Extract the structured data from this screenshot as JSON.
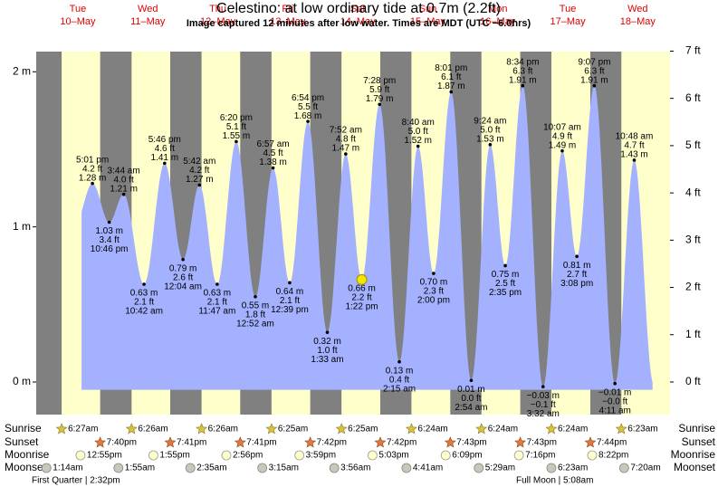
{
  "chart_data": {
    "type": "tide",
    "title": "Celestino: at low  ordinary tide at 0.7m (2.2ft)",
    "subtitle": "Image captured 12 minutes after low water. Times are MDT (UTC −6.0hrs)",
    "ylim": [
      -0.21,
      2.13
    ],
    "yticks": [
      {
        "value": 0,
        "label": "0 m"
      },
      {
        "value": 1,
        "label": "1 m"
      },
      {
        "value": 2,
        "label": "2 m"
      }
    ],
    "y2lim": [
      -0.69,
      6.99
    ],
    "y2ticks": [
      {
        "value": 0,
        "label": "0 ft"
      },
      {
        "value": 1,
        "label": "1 ft"
      },
      {
        "value": 2,
        "label": "2 ft"
      },
      {
        "value": 3,
        "label": "3 ft"
      },
      {
        "value": 4,
        "label": "4 ft"
      },
      {
        "value": 5,
        "label": "5 ft"
      },
      {
        "value": 6,
        "label": "6 ft"
      },
      {
        "value": 7,
        "label": "7 ft"
      }
    ],
    "water_color": "#a3b1ff",
    "day_color": "#ffffcc",
    "night_color": "#808080",
    "header_color": "#e00000",
    "days": [
      {
        "weekday": "Tue",
        "date": "10–May",
        "times": [
          "5:01 pm",
          "10:46 pm"
        ],
        "values": [
          1.28,
          1.03
        ],
        "value_labels": [
          "1.28 m",
          "1.03 m"
        ],
        "feet": [
          "4.2 ft",
          "3.4 ft"
        ]
      },
      {
        "weekday": "Wed",
        "date": "11–May",
        "times": [
          "3:44 am",
          "10:42 am",
          "5:46 pm"
        ],
        "values": [
          1.21,
          0.63,
          1.41
        ],
        "value_labels": [
          "1.21 m",
          "0.63 m",
          "1.41 m"
        ],
        "feet": [
          "4.0 ft",
          "2.1 ft",
          "4.6 ft"
        ]
      },
      {
        "weekday": "Thu",
        "date": "12–May",
        "times": [
          "12:04 am",
          "5:42 am",
          "11:47 am",
          "6:20 pm"
        ],
        "values": [
          0.79,
          1.27,
          0.63,
          1.55
        ],
        "value_labels": [
          "0.79 m",
          "1.27 m",
          "0.63 m",
          "1.55 m"
        ],
        "feet": [
          "2.6 ft",
          "4.2 ft",
          "2.1 ft",
          "5.1 ft"
        ]
      },
      {
        "weekday": "Fri",
        "date": "13–May",
        "times": [
          "12:52 am",
          "6:57 am",
          "12:39 pm",
          "6:54 pm"
        ],
        "values": [
          0.55,
          1.38,
          0.64,
          1.68
        ],
        "value_labels": [
          "0.55 m",
          "1.38 m",
          "0.64 m",
          "1.68 m"
        ],
        "feet": [
          "1.8 ft",
          "4.5 ft",
          "2.1 ft",
          "5.5 ft"
        ]
      },
      {
        "weekday": "Sat",
        "date": "14–May",
        "times": [
          "1:33 am",
          "7:52 am",
          "1:22 pm",
          "7:28 pm"
        ],
        "values": [
          0.32,
          1.47,
          0.66,
          1.79
        ],
        "value_labels": [
          "0.32 m",
          "1.47 m",
          "0.66 m",
          "1.79 m"
        ],
        "feet": [
          "1.0 ft",
          "4.8 ft",
          "2.2 ft",
          "5.9 ft"
        ]
      },
      {
        "weekday": "Sun",
        "date": "15–May",
        "times": [
          "2:15 am",
          "8:40 am",
          "2:00 pm",
          "8:01 pm"
        ],
        "values": [
          0.13,
          1.52,
          0.7,
          1.87
        ],
        "value_labels": [
          "0.13 m",
          "1.52 m",
          "0.70 m",
          "1.87 m"
        ],
        "feet": [
          "0.4 ft",
          "5.0 ft",
          "2.3 ft",
          "6.1 ft"
        ]
      },
      {
        "weekday": "Mon",
        "date": "16–May",
        "times": [
          "2:54 am",
          "9:24 am",
          "2:35 pm",
          "8:34 pm"
        ],
        "values": [
          0.01,
          1.53,
          0.75,
          1.91
        ],
        "value_labels": [
          "0.01 m",
          "1.53 m",
          "0.75 m",
          "1.91 m"
        ],
        "feet": [
          "0.0 ft",
          "5.0 ft",
          "2.5 ft",
          "6.3 ft"
        ]
      },
      {
        "weekday": "Tue",
        "date": "17–May",
        "times": [
          "3:32 am",
          "10:07 am",
          "3:08 pm",
          "9:07 pm"
        ],
        "values": [
          -0.03,
          1.49,
          0.81,
          1.91
        ],
        "value_labels": [
          "−0.03 m",
          "1.49 m",
          "0.81 m",
          "1.91 m"
        ],
        "feet": [
          "−0.1 ft",
          "4.9 ft",
          "2.7 ft",
          "6.3 ft"
        ]
      },
      {
        "weekday": "Wed",
        "date": "18–May",
        "times": [
          "4:11 am",
          "10:48 am"
        ],
        "values": [
          -0.01,
          1.43
        ],
        "value_labels": [
          "−0.01 m",
          "1.43 m"
        ],
        "feet": [
          "−0.0 ft",
          "4.7 ft"
        ]
      }
    ],
    "rows": [
      "Sunrise",
      "Sunset",
      "Moonrise",
      "Moonset"
    ],
    "sunrise": [
      "6:27am",
      "6:26am",
      "6:26am",
      "6:25am",
      "6:25am",
      "6:24am",
      "6:24am",
      "6:24am",
      "6:23am"
    ],
    "sunset": [
      "7:40pm",
      "7:41pm",
      "7:41pm",
      "7:42pm",
      "7:42pm",
      "7:43pm",
      "7:43pm",
      "7:44pm"
    ],
    "moonrise": [
      "12:55pm",
      "1:55pm",
      "2:56pm",
      "3:59pm",
      "5:03pm",
      "6:09pm",
      "7:16pm",
      "8:22pm"
    ],
    "moonset": [
      "1:14am",
      "1:55am",
      "2:35am",
      "3:15am",
      "3:56am",
      "4:41am",
      "5:29am",
      "6:23am",
      "7:20am"
    ],
    "moon_phases": [
      "First Quarter | 2:32pm",
      "Full Moon | 5:08am"
    ]
  }
}
